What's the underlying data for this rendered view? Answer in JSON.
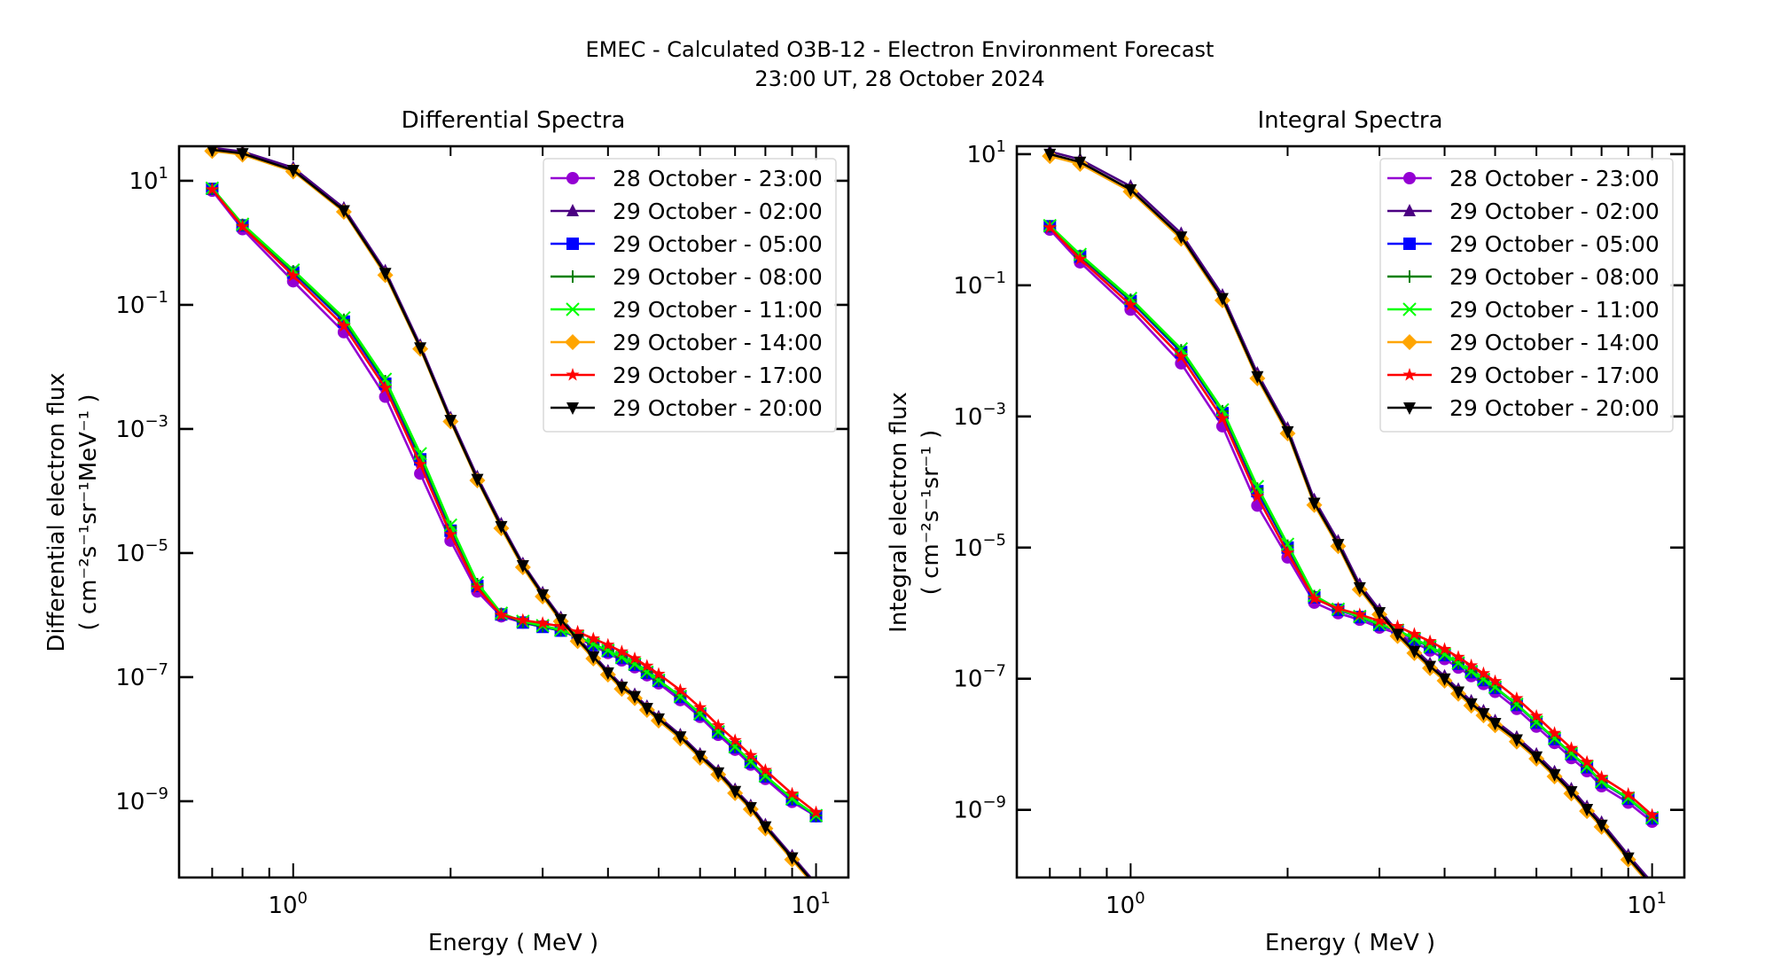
{
  "suptitle": {
    "line1": "EMEC - Calculated O3B-12 - Electron Environment Forecast",
    "line2": "23:00 UT, 28 October 2024"
  },
  "chart_data": [
    {
      "type": "line",
      "title": "Differential Spectra",
      "xlabel": "Energy ( MeV )",
      "ylabel_line1": "Differential electron flux",
      "ylabel_line2": "( cm⁻²s⁻¹sr⁻¹MeV⁻¹ )",
      "xscale": "log",
      "yscale": "log",
      "xlim": [
        0.605,
        11.53
      ],
      "ylim": [
        5.9e-11,
        36.0
      ],
      "xticks": [
        {
          "value": 1,
          "label": "10",
          "exp": "0"
        },
        {
          "value": 10,
          "label": "10",
          "exp": "1"
        }
      ],
      "yticks": [
        {
          "value": 10,
          "label": "10",
          "exp": "1"
        },
        {
          "value": 0.1,
          "label": "10",
          "exp": "−1"
        },
        {
          "value": 0.001,
          "label": "10",
          "exp": "−3"
        },
        {
          "value": 1e-05,
          "label": "10",
          "exp": "−5"
        },
        {
          "value": 1e-07,
          "label": "10",
          "exp": "−7"
        },
        {
          "value": 1e-09,
          "label": "10",
          "exp": "−9"
        }
      ],
      "legend_location": "upper-right",
      "x": [
        0.7,
        0.8,
        1.0,
        1.25,
        1.5,
        1.75,
        2.0,
        2.25,
        2.5,
        2.75,
        3.0,
        3.25,
        3.5,
        3.75,
        4.0,
        4.25,
        4.5,
        4.75,
        5.0,
        5.5,
        6.0,
        6.5,
        7.0,
        7.5,
        8.0,
        9.0,
        10.0
      ],
      "series": [
        {
          "name": "28 October - 23:00",
          "color": "#9400D3",
          "marker": "circle",
          "log10_values": [
            0.84,
            0.22,
            -0.62,
            -1.44,
            -2.48,
            -3.72,
            -4.8,
            -5.62,
            -6.02,
            -6.12,
            -6.18,
            -6.25,
            -6.36,
            -6.5,
            -6.61,
            -6.73,
            -6.84,
            -6.97,
            -7.1,
            -7.37,
            -7.64,
            -7.93,
            -8.17,
            -8.41,
            -8.64,
            -9.01,
            -9.24
          ]
        },
        {
          "name": "29 October - 02:00",
          "color": "#4B0082",
          "marker": "triangle-up",
          "log10_values": [
            1.53,
            1.47,
            1.21,
            0.56,
            -0.45,
            -1.65,
            -2.82,
            -3.77,
            -4.53,
            -5.17,
            -5.64,
            -6.04,
            -6.36,
            -6.64,
            -6.9,
            -7.13,
            -7.28,
            -7.47,
            -7.64,
            -7.93,
            -8.24,
            -8.51,
            -8.81,
            -9.07,
            -9.38,
            -9.88,
            -10.33
          ]
        },
        {
          "name": "29 October - 05:00",
          "color": "#0000FF",
          "marker": "square",
          "log10_values": [
            0.87,
            0.28,
            -0.48,
            -1.27,
            -2.27,
            -3.49,
            -4.64,
            -5.53,
            -5.99,
            -6.12,
            -6.19,
            -6.25,
            -6.35,
            -6.48,
            -6.58,
            -6.69,
            -6.8,
            -6.93,
            -7.06,
            -7.32,
            -7.6,
            -7.89,
            -8.13,
            -8.37,
            -8.6,
            -8.97,
            -9.24
          ]
        },
        {
          "name": "29 October - 08:00",
          "color": "#008000",
          "marker": "plus",
          "log10_values": [
            0.87,
            0.29,
            -0.46,
            -1.24,
            -2.23,
            -3.44,
            -4.58,
            -5.5,
            -5.98,
            -6.11,
            -6.18,
            -6.24,
            -6.34,
            -6.47,
            -6.57,
            -6.68,
            -6.79,
            -6.92,
            -7.05,
            -7.31,
            -7.59,
            -7.88,
            -8.12,
            -8.36,
            -8.59,
            -8.96,
            -9.23
          ]
        },
        {
          "name": "29 October - 11:00",
          "color": "#00FF00",
          "marker": "x",
          "log10_values": [
            0.88,
            0.3,
            -0.44,
            -1.21,
            -2.2,
            -3.4,
            -4.55,
            -5.48,
            -5.97,
            -6.1,
            -6.17,
            -6.24,
            -6.34,
            -6.47,
            -6.57,
            -6.68,
            -6.79,
            -6.92,
            -7.05,
            -7.31,
            -7.59,
            -7.88,
            -8.12,
            -8.36,
            -8.59,
            -8.96,
            -9.23
          ]
        },
        {
          "name": "29 October - 14:00",
          "color": "#FFA500",
          "marker": "diamond",
          "log10_values": [
            1.48,
            1.42,
            1.15,
            0.5,
            -0.52,
            -1.71,
            -2.88,
            -3.83,
            -4.6,
            -5.23,
            -5.7,
            -6.1,
            -6.42,
            -6.7,
            -6.96,
            -7.19,
            -7.34,
            -7.53,
            -7.7,
            -7.99,
            -8.3,
            -8.57,
            -8.87,
            -9.13,
            -9.44,
            -9.94,
            -10.39
          ]
        },
        {
          "name": "29 October - 17:00",
          "color": "#FF0000",
          "marker": "star",
          "log10_values": [
            0.86,
            0.26,
            -0.53,
            -1.34,
            -2.34,
            -3.57,
            -4.7,
            -5.56,
            -6.0,
            -6.08,
            -6.13,
            -6.18,
            -6.27,
            -6.38,
            -6.48,
            -6.59,
            -6.7,
            -6.82,
            -6.95,
            -7.21,
            -7.49,
            -7.78,
            -8.02,
            -8.26,
            -8.5,
            -8.88,
            -9.18
          ]
        },
        {
          "name": "29 October - 20:00",
          "color": "#000000",
          "marker": "triangle-down",
          "log10_values": [
            1.5,
            1.44,
            1.17,
            0.52,
            -0.49,
            -1.69,
            -2.86,
            -3.81,
            -4.57,
            -5.2,
            -5.67,
            -6.07,
            -6.39,
            -6.67,
            -6.93,
            -7.16,
            -7.31,
            -7.5,
            -7.67,
            -7.96,
            -8.27,
            -8.54,
            -8.84,
            -9.1,
            -9.41,
            -9.91,
            -10.36
          ]
        }
      ]
    },
    {
      "type": "line",
      "title": "Integral Spectra",
      "xlabel": "Energy ( MeV )",
      "ylabel_line1": "Integral electron flux",
      "ylabel_line2": "( cm⁻²s⁻¹sr⁻¹ )",
      "xscale": "log",
      "yscale": "log",
      "xlim": [
        0.605,
        11.53
      ],
      "ylim": [
        9.3e-11,
        13.2
      ],
      "xticks": [
        {
          "value": 1,
          "label": "10",
          "exp": "0"
        },
        {
          "value": 10,
          "label": "10",
          "exp": "1"
        }
      ],
      "yticks": [
        {
          "value": 10,
          "label": "10",
          "exp": "1"
        },
        {
          "value": 0.1,
          "label": "10",
          "exp": "−1"
        },
        {
          "value": 0.001,
          "label": "10",
          "exp": "−3"
        },
        {
          "value": 1e-05,
          "label": "10",
          "exp": "−5"
        },
        {
          "value": 1e-07,
          "label": "10",
          "exp": "−7"
        },
        {
          "value": 1e-09,
          "label": "10",
          "exp": "−9"
        }
      ],
      "legend_location": "upper-right",
      "x": [
        0.7,
        0.8,
        1.0,
        1.25,
        1.5,
        1.75,
        2.0,
        2.25,
        2.5,
        2.75,
        3.0,
        3.25,
        3.5,
        3.75,
        4.0,
        4.25,
        4.5,
        4.75,
        5.0,
        5.5,
        6.0,
        6.5,
        7.0,
        7.5,
        8.0,
        9.0,
        10.0
      ],
      "series": [
        {
          "name": "28 October - 23:00",
          "color": "#9400D3",
          "marker": "circle",
          "log10_values": [
            -0.15,
            -0.65,
            -1.37,
            -2.19,
            -3.15,
            -4.36,
            -5.15,
            -5.84,
            -6.0,
            -6.1,
            -6.22,
            -6.31,
            -6.45,
            -6.57,
            -6.7,
            -6.83,
            -6.96,
            -7.08,
            -7.2,
            -7.46,
            -7.73,
            -7.98,
            -8.21,
            -8.41,
            -8.64,
            -8.89,
            -9.18
          ]
        },
        {
          "name": "29 October - 02:00",
          "color": "#4B0082",
          "marker": "triangle-up",
          "log10_values": [
            1.04,
            0.92,
            0.51,
            -0.21,
            -1.15,
            -2.34,
            -3.18,
            -4.27,
            -4.9,
            -5.56,
            -5.95,
            -6.28,
            -6.54,
            -6.77,
            -6.96,
            -7.16,
            -7.34,
            -7.49,
            -7.64,
            -7.89,
            -8.15,
            -8.42,
            -8.68,
            -8.95,
            -9.19,
            -9.69,
            -10.11
          ]
        },
        {
          "name": "29 October - 05:00",
          "color": "#0000FF",
          "marker": "square",
          "log10_values": [
            -0.1,
            -0.56,
            -1.24,
            -2.02,
            -2.95,
            -4.14,
            -5.0,
            -5.76,
            -5.95,
            -6.06,
            -6.18,
            -6.27,
            -6.4,
            -6.52,
            -6.64,
            -6.77,
            -6.9,
            -7.02,
            -7.14,
            -7.4,
            -7.67,
            -7.92,
            -8.15,
            -8.35,
            -8.58,
            -8.83,
            -9.13
          ]
        },
        {
          "name": "29 October - 08:00",
          "color": "#008000",
          "marker": "plus",
          "log10_values": [
            -0.1,
            -0.55,
            -1.22,
            -1.99,
            -2.92,
            -4.1,
            -4.97,
            -5.74,
            -5.94,
            -6.05,
            -6.17,
            -6.26,
            -6.39,
            -6.51,
            -6.63,
            -6.76,
            -6.89,
            -7.01,
            -7.13,
            -7.39,
            -7.66,
            -7.91,
            -8.14,
            -8.34,
            -8.57,
            -8.82,
            -9.12
          ]
        },
        {
          "name": "29 October - 11:00",
          "color": "#00FF00",
          "marker": "x",
          "log10_values": [
            -0.09,
            -0.53,
            -1.2,
            -1.97,
            -2.9,
            -4.07,
            -4.95,
            -5.73,
            -5.94,
            -6.05,
            -6.17,
            -6.26,
            -6.39,
            -6.51,
            -6.63,
            -6.76,
            -6.89,
            -7.01,
            -7.13,
            -7.39,
            -7.66,
            -7.91,
            -8.14,
            -8.34,
            -8.57,
            -8.82,
            -9.12
          ]
        },
        {
          "name": "29 October - 14:00",
          "color": "#FFA500",
          "marker": "diamond",
          "log10_values": [
            0.97,
            0.85,
            0.43,
            -0.29,
            -1.23,
            -2.42,
            -3.26,
            -4.35,
            -4.98,
            -5.64,
            -6.02,
            -6.35,
            -6.61,
            -6.84,
            -7.03,
            -7.23,
            -7.41,
            -7.56,
            -7.71,
            -7.96,
            -8.22,
            -8.49,
            -8.75,
            -9.02,
            -9.26,
            -9.76,
            -10.18
          ]
        },
        {
          "name": "29 October - 17:00",
          "color": "#FF0000",
          "marker": "star",
          "log10_values": [
            -0.12,
            -0.6,
            -1.3,
            -2.09,
            -3.03,
            -4.22,
            -5.08,
            -5.78,
            -5.93,
            -6.02,
            -6.12,
            -6.2,
            -6.32,
            -6.43,
            -6.55,
            -6.67,
            -6.8,
            -6.92,
            -7.04,
            -7.3,
            -7.57,
            -7.83,
            -8.06,
            -8.27,
            -8.5,
            -8.76,
            -9.08
          ]
        },
        {
          "name": "29 October - 20:00",
          "color": "#000000",
          "marker": "triangle-down",
          "log10_values": [
            1.0,
            0.88,
            0.46,
            -0.26,
            -1.2,
            -2.39,
            -3.23,
            -4.32,
            -4.95,
            -5.61,
            -5.99,
            -6.32,
            -6.58,
            -6.81,
            -7.0,
            -7.2,
            -7.38,
            -7.53,
            -7.68,
            -7.93,
            -8.19,
            -8.46,
            -8.72,
            -8.99,
            -9.23,
            -9.73,
            -10.15
          ]
        }
      ]
    }
  ]
}
